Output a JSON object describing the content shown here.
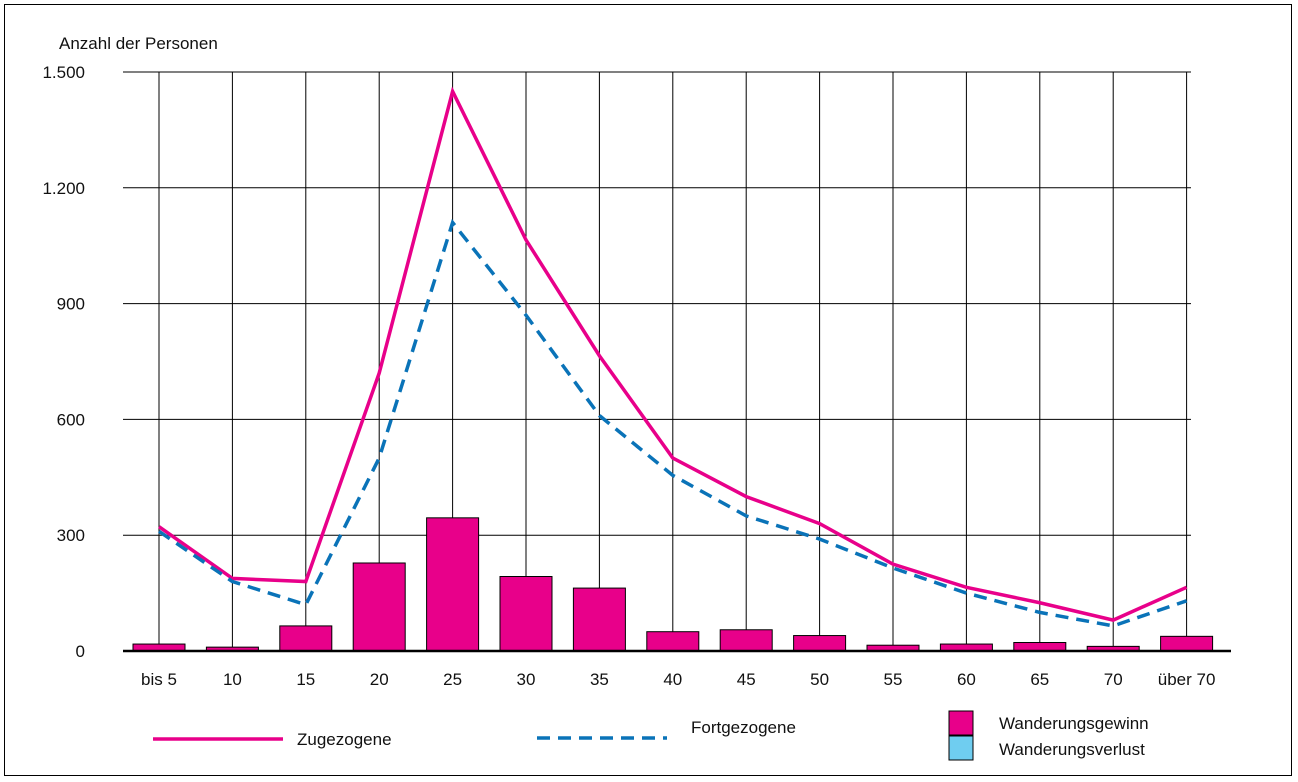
{
  "chart_data": {
    "type": "bar",
    "ylabel": "Anzahl der Personen",
    "ylim": [
      0,
      1500
    ],
    "y_ticks": [
      0,
      300,
      600,
      900,
      1200,
      1500
    ],
    "y_tick_labels": [
      "0",
      "300",
      "600",
      "900",
      "1.200",
      "1.500"
    ],
    "categories": [
      "bis 5",
      "10",
      "15",
      "20",
      "25",
      "30",
      "35",
      "40",
      "45",
      "50",
      "55",
      "60",
      "65",
      "70",
      "über 70"
    ],
    "grid": true,
    "series": [
      {
        "name": "Zugezogene",
        "kind": "line",
        "style": "solid",
        "color": "#e8008a",
        "values": [
          322,
          188,
          180,
          720,
          1450,
          1065,
          765,
          500,
          400,
          330,
          225,
          165,
          125,
          80,
          165
        ]
      },
      {
        "name": "Fortgezogene",
        "kind": "line",
        "style": "dashed",
        "color": "#0a73b8",
        "values": [
          310,
          180,
          120,
          500,
          1110,
          870,
          610,
          455,
          350,
          290,
          215,
          150,
          100,
          65,
          130
        ]
      },
      {
        "name": "Wanderungsgewinn",
        "kind": "bar",
        "color": "#e8008a",
        "values": [
          18,
          10,
          65,
          228,
          345,
          193,
          163,
          50,
          55,
          40,
          15,
          18,
          22,
          12,
          38
        ]
      },
      {
        "name": "Wanderungsverlust",
        "kind": "bar",
        "color": "#6fcdf0",
        "values": [
          0,
          0,
          0,
          0,
          0,
          0,
          0,
          0,
          0,
          0,
          0,
          0,
          0,
          0,
          0
        ]
      }
    ],
    "legend_position": "bottom"
  }
}
